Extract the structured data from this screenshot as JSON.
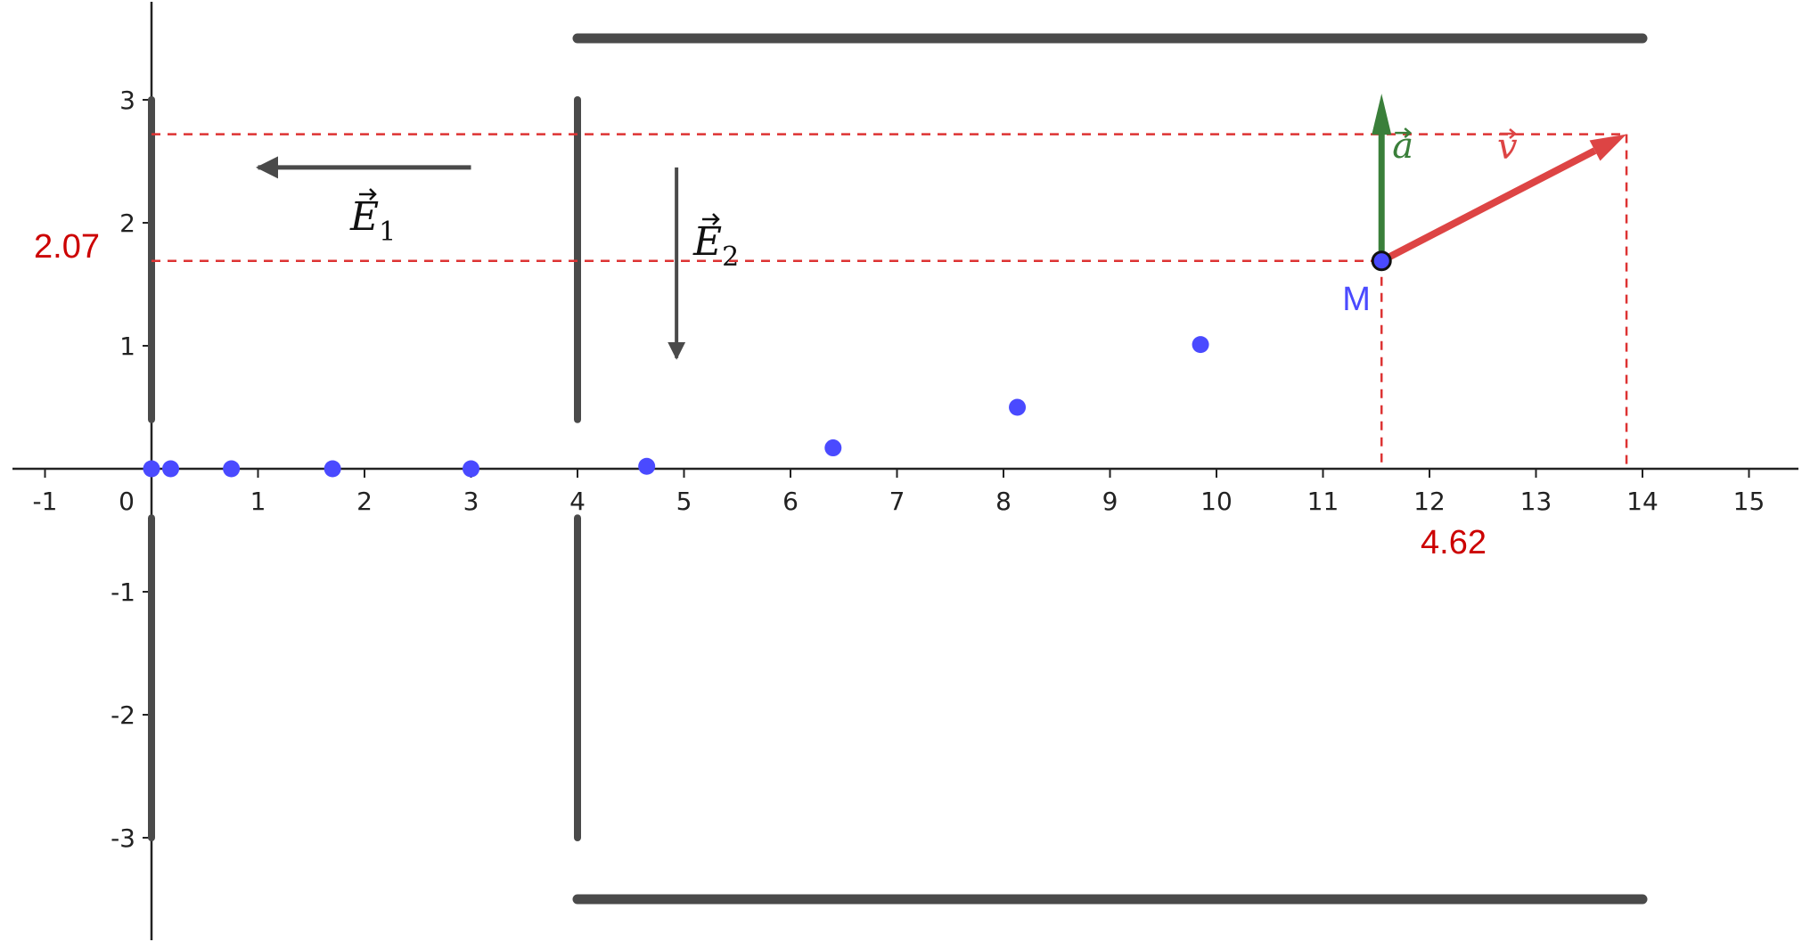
{
  "chart_data": {
    "type": "scatter",
    "x_ticks": [
      "-1",
      "0",
      "1",
      "2",
      "3",
      "4",
      "5",
      "6",
      "7",
      "8",
      "9",
      "10",
      "11",
      "12",
      "13",
      "14",
      "15"
    ],
    "y_ticks": [
      "3",
      "2",
      "1",
      "-1",
      "-2",
      "-3"
    ],
    "xlim": [
      -1.25,
      15.5
    ],
    "ylim": [
      -3.8,
      3.8
    ],
    "grid": false,
    "points": [
      [
        0.0,
        0.0
      ],
      [
        0.18,
        0.0
      ],
      [
        0.75,
        0.0
      ],
      [
        1.7,
        0.0
      ],
      [
        3.0,
        0.0
      ],
      [
        4.65,
        0.02
      ],
      [
        6.4,
        0.17
      ],
      [
        8.13,
        0.5
      ],
      [
        9.85,
        1.01
      ]
    ],
    "particle": {
      "label": "M",
      "x": 11.55,
      "y": 1.69
    },
    "velocity_tip": {
      "x": 13.85,
      "y": 2.72
    },
    "acceleration_tip": {
      "x": 11.55,
      "y": 3.05
    },
    "plates": {
      "left_vertical": {
        "x": 0.0,
        "segments": [
          [
            0.4,
            3.0
          ],
          [
            -3.0,
            -0.4
          ]
        ]
      },
      "middle_vertical": {
        "x": 4.0,
        "segments": [
          [
            0.4,
            3.0
          ],
          [
            -3.0,
            -0.4
          ]
        ]
      },
      "horizontal": {
        "x_range": [
          4.0,
          14.0
        ],
        "y": [
          3.5,
          -3.5
        ]
      }
    },
    "field_arrows": {
      "E1": {
        "from": [
          3.0,
          2.45
        ],
        "to": [
          1.0,
          2.45
        ]
      },
      "E2": {
        "from": [
          4.93,
          2.45
        ],
        "to": [
          4.93,
          0.9
        ]
      }
    },
    "annotations": {
      "y_value": "2.07",
      "x_value": "4.62"
    },
    "vector_labels": {
      "E1": "E",
      "E1_sub": "1",
      "E2": "E",
      "E2_sub": "2",
      "a": "a",
      "v": "v"
    },
    "colors": {
      "axis": "#222222",
      "plate": "#4a4a4a",
      "points": "#4a4aff",
      "velocity": "#dd4444",
      "acceleration": "#3a7f3a",
      "guides": "#dd3333",
      "annotation": "#cc0000"
    }
  }
}
